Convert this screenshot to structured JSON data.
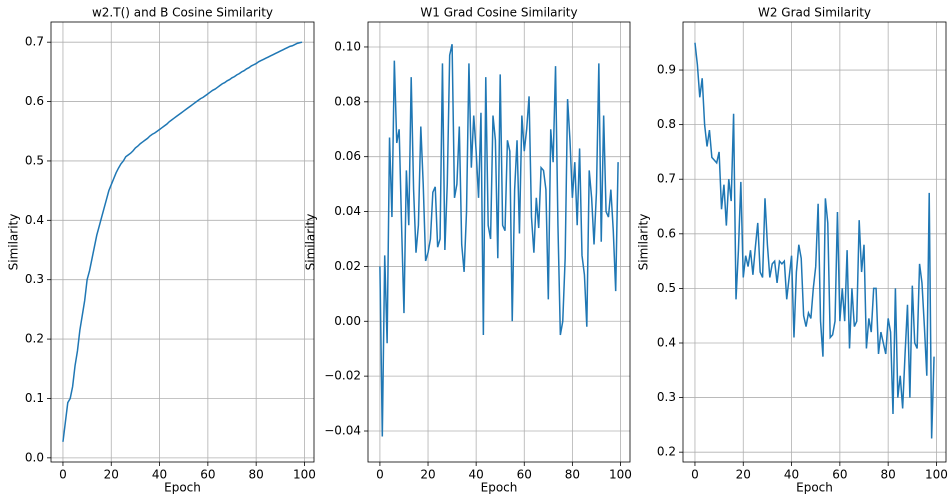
{
  "chart_data": [
    {
      "type": "line",
      "title": "w2.T() and B Cosine Similarity",
      "xlabel": "Epoch",
      "ylabel": "Similarity",
      "grid": true,
      "xlim": [
        -4.95,
        103.95
      ],
      "xticks": [
        0,
        20,
        40,
        60,
        80,
        100
      ],
      "ylim": [
        -0.007,
        0.734
      ],
      "yticks": [
        {
          "value": 0,
          "label": "0.0"
        },
        0.1,
        0.2,
        0.3,
        0.4,
        0.5,
        0.6,
        0.7
      ],
      "x": [
        0,
        1,
        2,
        3,
        4,
        5,
        6,
        7,
        8,
        9,
        10,
        11,
        12,
        13,
        14,
        15,
        16,
        17,
        18,
        19,
        20,
        21,
        22,
        23,
        24,
        25,
        26,
        27,
        28,
        29,
        30,
        31,
        32,
        33,
        34,
        35,
        36,
        37,
        38,
        39,
        40,
        41,
        42,
        43,
        44,
        45,
        46,
        47,
        48,
        49,
        50,
        51,
        52,
        53,
        54,
        55,
        56,
        57,
        58,
        59,
        60,
        61,
        62,
        63,
        64,
        65,
        66,
        67,
        68,
        69,
        70,
        71,
        72,
        73,
        74,
        75,
        76,
        77,
        78,
        79,
        80,
        81,
        82,
        83,
        84,
        85,
        86,
        87,
        88,
        89,
        90,
        91,
        92,
        93,
        94,
        95,
        96,
        97,
        98,
        99
      ],
      "series": [
        {
          "color": "#1f77b4",
          "values": [
            0.027,
            0.06,
            0.093,
            0.1,
            0.12,
            0.155,
            0.18,
            0.215,
            0.24,
            0.265,
            0.3,
            0.315,
            0.335,
            0.355,
            0.375,
            0.39,
            0.405,
            0.42,
            0.435,
            0.45,
            0.46,
            0.47,
            0.48,
            0.488,
            0.495,
            0.5,
            0.507,
            0.51,
            0.513,
            0.517,
            0.522,
            0.525,
            0.529,
            0.532,
            0.535,
            0.538,
            0.542,
            0.545,
            0.547,
            0.55,
            0.553,
            0.556,
            0.559,
            0.562,
            0.566,
            0.569,
            0.572,
            0.575,
            0.578,
            0.581,
            0.584,
            0.587,
            0.59,
            0.593,
            0.596,
            0.599,
            0.602,
            0.605,
            0.607,
            0.61,
            0.613,
            0.616,
            0.619,
            0.621,
            0.624,
            0.627,
            0.63,
            0.632,
            0.635,
            0.637,
            0.64,
            0.642,
            0.645,
            0.647,
            0.65,
            0.652,
            0.655,
            0.657,
            0.66,
            0.662,
            0.664,
            0.667,
            0.669,
            0.671,
            0.673,
            0.675,
            0.677,
            0.679,
            0.681,
            0.683,
            0.685,
            0.687,
            0.689,
            0.691,
            0.693,
            0.694,
            0.696,
            0.698,
            0.699,
            0.7
          ]
        }
      ]
    },
    {
      "type": "line",
      "title": "W1 Grad Cosine Similarity",
      "xlabel": "Epoch",
      "ylabel": "Similarity",
      "grid": true,
      "xlim": [
        -4.95,
        103.95
      ],
      "xticks": [
        0,
        20,
        40,
        60,
        80,
        100
      ],
      "ylim": [
        -0.0513,
        0.1091
      ],
      "yticks": [
        {
          "value": -0.04,
          "label": "−0.04"
        },
        {
          "value": -0.02,
          "label": "−0.02"
        },
        {
          "value": 0,
          "label": "0.00"
        },
        0.02,
        0.04,
        0.06,
        0.08,
        {
          "value": 0.1,
          "label": "0.10"
        }
      ],
      "x": [
        0,
        1,
        2,
        3,
        4,
        5,
        6,
        7,
        8,
        9,
        10,
        11,
        12,
        13,
        14,
        15,
        16,
        17,
        18,
        19,
        20,
        21,
        22,
        23,
        24,
        25,
        26,
        27,
        28,
        29,
        30,
        31,
        32,
        33,
        34,
        35,
        36,
        37,
        38,
        39,
        40,
        41,
        42,
        43,
        44,
        45,
        46,
        47,
        48,
        49,
        50,
        51,
        52,
        53,
        54,
        55,
        56,
        57,
        58,
        59,
        60,
        61,
        62,
        63,
        64,
        65,
        66,
        67,
        68,
        69,
        70,
        71,
        72,
        73,
        74,
        75,
        76,
        77,
        78,
        79,
        80,
        81,
        82,
        83,
        84,
        85,
        86,
        87,
        88,
        89,
        90,
        91,
        92,
        93,
        94,
        95,
        96,
        97,
        98,
        99
      ],
      "series": [
        {
          "color": "#1f77b4",
          "values": [
            0.02,
            -0.042,
            0.024,
            -0.008,
            0.067,
            0.038,
            0.095,
            0.065,
            0.07,
            0.035,
            0.003,
            0.055,
            0.035,
            0.089,
            0.048,
            0.025,
            0.035,
            0.071,
            0.05,
            0.022,
            0.025,
            0.03,
            0.047,
            0.049,
            0.027,
            0.03,
            0.094,
            0.026,
            0.05,
            0.097,
            0.101,
            0.045,
            0.05,
            0.071,
            0.028,
            0.018,
            0.04,
            0.094,
            0.056,
            0.075,
            0.062,
            0.045,
            0.076,
            -0.005,
            0.089,
            0.035,
            0.03,
            0.075,
            0.066,
            0.023,
            0.09,
            0.035,
            0.033,
            0.066,
            0.062,
            0.0,
            0.048,
            0.066,
            0.032,
            0.075,
            0.062,
            0.07,
            0.082,
            0.038,
            0.025,
            0.045,
            0.034,
            0.056,
            0.055,
            0.048,
            0.008,
            0.07,
            0.058,
            0.093,
            0.035,
            -0.005,
            0.0,
            0.023,
            0.081,
            0.066,
            0.045,
            0.058,
            0.035,
            0.063,
            0.024,
            0.017,
            -0.002,
            0.055,
            0.045,
            0.028,
            0.047,
            0.094,
            0.029,
            0.075,
            0.04,
            0.038,
            0.048,
            0.033,
            0.011,
            0.058
          ]
        }
      ]
    },
    {
      "type": "line",
      "title": "W2 Grad Similarity",
      "xlabel": "Epoch",
      "ylabel": "Similarity",
      "grid": true,
      "xlim": [
        -4.95,
        103.95
      ],
      "xticks": [
        0,
        20,
        40,
        60,
        80,
        100
      ],
      "ylim": [
        0.182,
        0.988
      ],
      "yticks": [
        0.2,
        0.3,
        0.4,
        0.5,
        0.6,
        0.7,
        0.8,
        0.9
      ],
      "x": [
        0,
        1,
        2,
        3,
        4,
        5,
        6,
        7,
        8,
        9,
        10,
        11,
        12,
        13,
        14,
        15,
        16,
        17,
        18,
        19,
        20,
        21,
        22,
        23,
        24,
        25,
        26,
        27,
        28,
        29,
        30,
        31,
        32,
        33,
        34,
        35,
        36,
        37,
        38,
        39,
        40,
        41,
        42,
        43,
        44,
        45,
        46,
        47,
        48,
        49,
        50,
        51,
        52,
        53,
        54,
        55,
        56,
        57,
        58,
        59,
        60,
        61,
        62,
        63,
        64,
        65,
        66,
        67,
        68,
        69,
        70,
        71,
        72,
        73,
        74,
        75,
        76,
        77,
        78,
        79,
        80,
        81,
        82,
        83,
        84,
        85,
        86,
        87,
        88,
        89,
        90,
        91,
        92,
        93,
        94,
        95,
        96,
        97,
        98,
        99
      ],
      "series": [
        {
          "color": "#1f77b4",
          "values": [
            0.95,
            0.91,
            0.85,
            0.885,
            0.8,
            0.76,
            0.79,
            0.74,
            0.735,
            0.73,
            0.75,
            0.645,
            0.69,
            0.615,
            0.7,
            0.66,
            0.82,
            0.48,
            0.57,
            0.695,
            0.52,
            0.56,
            0.54,
            0.57,
            0.525,
            0.575,
            0.62,
            0.53,
            0.52,
            0.665,
            0.58,
            0.52,
            0.545,
            0.55,
            0.51,
            0.55,
            0.545,
            0.55,
            0.48,
            0.52,
            0.56,
            0.41,
            0.53,
            0.58,
            0.555,
            0.45,
            0.43,
            0.455,
            0.445,
            0.5,
            0.54,
            0.655,
            0.44,
            0.375,
            0.665,
            0.62,
            0.41,
            0.415,
            0.44,
            0.64,
            0.44,
            0.5,
            0.44,
            0.57,
            0.39,
            0.5,
            0.43,
            0.44,
            0.625,
            0.53,
            0.58,
            0.39,
            0.445,
            0.42,
            0.5,
            0.5,
            0.38,
            0.42,
            0.4,
            0.38,
            0.445,
            0.42,
            0.27,
            0.5,
            0.3,
            0.34,
            0.28,
            0.38,
            0.47,
            0.3,
            0.505,
            0.4,
            0.39,
            0.545,
            0.51,
            0.43,
            0.34,
            0.675,
            0.225,
            0.375
          ]
        }
      ]
    }
  ]
}
